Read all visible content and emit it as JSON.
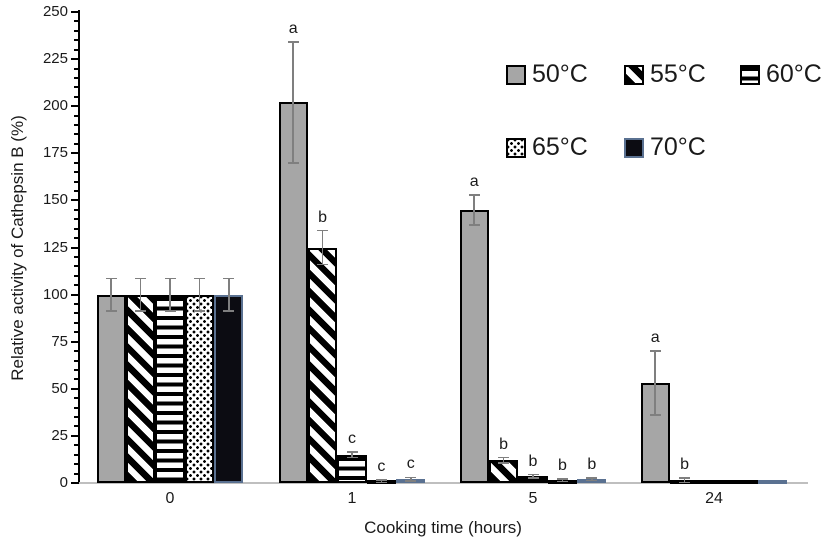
{
  "chart_data": {
    "type": "bar",
    "title": "",
    "xlabel": "Cooking time (hours)",
    "ylabel": "Relative activity of Cathepsin B (%)",
    "categories": [
      "0",
      "1",
      "5",
      "24"
    ],
    "ylim": [
      0,
      250
    ],
    "ytick_major_step": 25,
    "ytick_minor_step": 5,
    "grid": false,
    "legend_position": "inside upper right, two rows",
    "legend_rows": [
      [
        0,
        1,
        2
      ],
      [
        3,
        4
      ]
    ],
    "error_bar_color": "#7f7f7f",
    "axis_line_color": "#000000",
    "baseline_color": "#bfbfbf",
    "series": [
      {
        "name": "50°C",
        "pattern": "solid-gray",
        "fill": "#a6a6a6",
        "border": "#000000",
        "values": [
          100,
          202,
          145,
          53
        ],
        "errors": [
          8.5,
          32,
          8,
          17
        ],
        "letters": [
          "",
          "a",
          "a",
          "a"
        ]
      },
      {
        "name": "55°C",
        "pattern": "diagonal-stripes",
        "fill": "#ffffff",
        "border": "#000000",
        "values": [
          100,
          125,
          12,
          1.5
        ],
        "errors": [
          8.5,
          9,
          1.5,
          1.2
        ],
        "letters": [
          "",
          "b",
          "b",
          "b"
        ]
      },
      {
        "name": "60°C",
        "pattern": "horizontal-stripes",
        "fill": "#ffffff",
        "border": "#000000",
        "values": [
          100,
          15,
          3.5,
          0.4
        ],
        "errors": [
          8.5,
          1.5,
          1,
          0
        ],
        "letters": [
          "",
          "c",
          "b",
          ""
        ]
      },
      {
        "name": "65°C",
        "pattern": "dots",
        "fill": "#ffffff",
        "border": "#000000",
        "values": [
          100,
          1,
          1.5,
          0.4
        ],
        "errors": [
          8.5,
          0.7,
          0.7,
          0
        ],
        "letters": [
          "",
          "c",
          "b",
          ""
        ]
      },
      {
        "name": "70°C",
        "pattern": "solid-black",
        "fill": "#0c0c12",
        "border": "#5a7191",
        "values": [
          100,
          2,
          2,
          0.8
        ],
        "errors": [
          8.5,
          1,
          0.7,
          0
        ],
        "letters": [
          "",
          "c",
          "b",
          ""
        ]
      }
    ]
  }
}
